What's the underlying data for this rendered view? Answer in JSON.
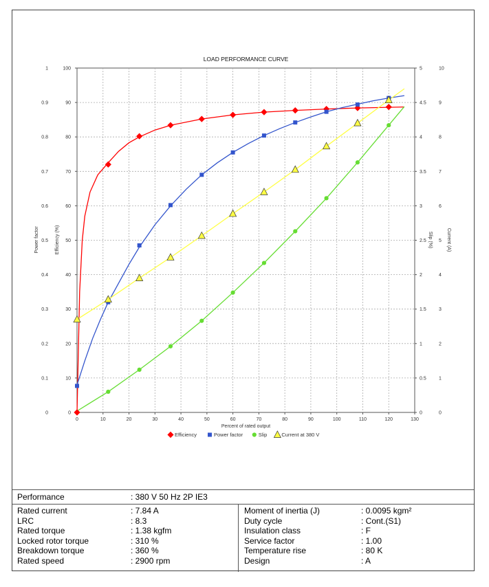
{
  "chart_data": {
    "type": "line",
    "title": "LOAD PERFORMANCE CURVE",
    "xlabel": "Percent of rated output",
    "xlim": [
      0,
      130
    ],
    "x_ticks": [
      "0",
      "10",
      "20",
      "30",
      "40",
      "50",
      "60",
      "70",
      "80",
      "90",
      "100",
      "110",
      "120",
      "130"
    ],
    "axes": {
      "power_factor": {
        "label": "Power factor",
        "ticks": [
          "0",
          "0.1",
          "0.2",
          "0.3",
          "0.4",
          "0.5",
          "0.6",
          "0.7",
          "0.8",
          "0.9",
          "1"
        ]
      },
      "efficiency": {
        "label": "Efficiency (%)",
        "ticks": [
          "0",
          "10",
          "20",
          "30",
          "40",
          "50",
          "60",
          "70",
          "80",
          "90",
          "100"
        ]
      },
      "slip": {
        "label": "Slip (%)",
        "ticks": [
          "0",
          "0.5",
          "1",
          "1.5",
          "2",
          "2.5",
          "3",
          "3.5",
          "4",
          "4.5",
          "5"
        ]
      },
      "current": {
        "label": "Current (A)",
        "ticks": [
          "0",
          "1",
          "2",
          "3",
          "4",
          "5",
          "6",
          "7",
          "8",
          "9",
          "10"
        ]
      }
    },
    "grid": true,
    "legend_position": "bottom",
    "series": [
      {
        "name": "Efficiency",
        "axis": "efficiency",
        "color": "#ff0000",
        "marker": "diamond",
        "x": [
          0,
          12,
          24,
          36,
          48,
          60,
          72,
          84,
          96,
          108,
          120
        ],
        "y": [
          0,
          72,
          80.2,
          83.4,
          85.2,
          86.4,
          87.2,
          87.7,
          88.1,
          88.4,
          88.7
        ],
        "curve_x": [
          0,
          1,
          2,
          3,
          5,
          8,
          12,
          16,
          20,
          24,
          30,
          36,
          48,
          60,
          72,
          84,
          96,
          108,
          120,
          126
        ],
        "curve_y": [
          0,
          35,
          50,
          57,
          64,
          69,
          72.5,
          75.8,
          78.3,
          80,
          82,
          83.4,
          85.2,
          86.4,
          87.2,
          87.7,
          88.1,
          88.4,
          88.6,
          88.7
        ]
      },
      {
        "name": "Power factor",
        "axis": "power_factor",
        "color": "#3355cc",
        "marker": "square",
        "x": [
          0,
          12,
          24,
          36,
          48,
          60,
          72,
          84,
          96,
          108,
          120
        ],
        "y": [
          0.077,
          0.32,
          0.485,
          0.602,
          0.69,
          0.755,
          0.804,
          0.842,
          0.873,
          0.894,
          0.913
        ],
        "curve_x": [
          0,
          3,
          6,
          9,
          12,
          16,
          20,
          24,
          30,
          36,
          42,
          48,
          54,
          60,
          66,
          72,
          78,
          84,
          90,
          96,
          102,
          108,
          114,
          120,
          126
        ],
        "curve_y": [
          0.08,
          0.15,
          0.215,
          0.27,
          0.32,
          0.375,
          0.43,
          0.48,
          0.545,
          0.6,
          0.648,
          0.69,
          0.725,
          0.755,
          0.781,
          0.804,
          0.824,
          0.842,
          0.858,
          0.873,
          0.885,
          0.895,
          0.905,
          0.913,
          0.92
        ]
      },
      {
        "name": "Slip",
        "axis": "slip",
        "color": "#66dd33",
        "marker": "circle",
        "x": [
          12,
          24,
          36,
          48,
          60,
          72,
          84,
          96,
          108,
          120
        ],
        "y": [
          0.3,
          0.62,
          0.96,
          1.33,
          1.74,
          2.17,
          2.63,
          3.11,
          3.63,
          4.17
        ],
        "curve_x": [
          0,
          12,
          24,
          36,
          48,
          60,
          72,
          84,
          96,
          108,
          120,
          126
        ],
        "curve_y": [
          0.02,
          0.3,
          0.62,
          0.96,
          1.33,
          1.74,
          2.17,
          2.63,
          3.11,
          3.63,
          4.17,
          4.44
        ]
      },
      {
        "name": "Current at 380 V",
        "axis": "current",
        "color": "#ffff44",
        "marker": "triangle",
        "x": [
          0,
          12,
          24,
          36,
          48,
          60,
          72,
          84,
          96,
          108,
          120
        ],
        "y": [
          2.7,
          3.28,
          3.9,
          4.5,
          5.13,
          5.77,
          6.4,
          7.05,
          7.73,
          8.4,
          9.07
        ],
        "curve_x": [
          0,
          12,
          24,
          36,
          48,
          60,
          72,
          84,
          96,
          108,
          120,
          126
        ],
        "curve_y": [
          2.7,
          3.28,
          3.9,
          4.5,
          5.13,
          5.77,
          6.4,
          7.05,
          7.73,
          8.4,
          9.07,
          9.4
        ]
      }
    ]
  },
  "table": {
    "performance_label": "Performance",
    "performance_value": ": 380 V 50 Hz 2P IE3",
    "left": [
      {
        "label": "Rated current",
        "value": ": 7.84 A"
      },
      {
        "label": "LRC",
        "value": ": 8.3"
      },
      {
        "label": "Rated torque",
        "value": ": 1.38 kgfm"
      },
      {
        "label": "Locked rotor torque",
        "value": ": 310 %"
      },
      {
        "label": "Breakdown torque",
        "value": ": 360 %"
      },
      {
        "label": "Rated speed",
        "value": ": 2900 rpm"
      }
    ],
    "right": [
      {
        "label": "Moment of inertia (J)",
        "value": ": 0.0095 kgm²"
      },
      {
        "label": "Duty cycle",
        "value": ": Cont.(S1)"
      },
      {
        "label": "Insulation class",
        "value": ": F"
      },
      {
        "label": "Service factor",
        "value": ": 1.00"
      },
      {
        "label": "Temperature rise",
        "value": ": 80 K"
      },
      {
        "label": "Design",
        "value": ": A"
      }
    ]
  }
}
